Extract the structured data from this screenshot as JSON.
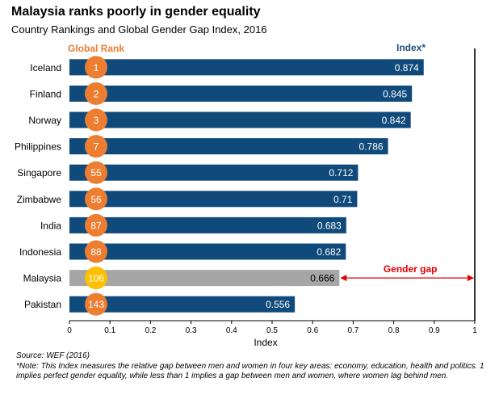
{
  "header": {
    "title": "Malaysia ranks poorly in gender equality",
    "subtitle": "Country Rankings and Global Gender Gap Index, 2016"
  },
  "chart_data": {
    "type": "bar",
    "orientation": "horizontal",
    "categories": [
      "Iceland",
      "Finland",
      "Norway",
      "Philippines",
      "Singapore",
      "Zimbabwe",
      "India",
      "Indonesia",
      "Malaysia",
      "Pakistan"
    ],
    "values": [
      0.874,
      0.845,
      0.842,
      0.786,
      0.712,
      0.71,
      0.683,
      0.682,
      0.666,
      0.556
    ],
    "value_labels": [
      "0.874",
      "0.845",
      "0.842",
      "0.786",
      "0.712",
      "0.71",
      "0.683",
      "0.682",
      "0.666",
      "0.556"
    ],
    "ranks": [
      "1",
      "2",
      "3",
      "7",
      "55",
      "56",
      "87",
      "88",
      "106",
      "143"
    ],
    "rank_header": "Global Rank",
    "index_header": "Index*",
    "xlabel": "Index",
    "xlim": [
      0,
      1
    ],
    "xticks": [
      "0",
      "0.1",
      "0.2",
      "0.3",
      "0.4",
      "0.5",
      "0.6",
      "0.7",
      "0.8",
      "0.9",
      "1"
    ],
    "highlight": "Malaysia",
    "annotation": {
      "label": "Gender gap",
      "from": 0.666,
      "to": 1
    },
    "colors": {
      "bar": "#0f4a7b",
      "highlight_bar": "#a6a6a6",
      "rank_circle": "#ed7d31",
      "highlight_circle": "#ffc000",
      "rank_header": "#ed7d31",
      "index_header": "#1f4e79",
      "annotation": "#e00000"
    }
  },
  "footnotes": {
    "source": "Source: WEF (2016)",
    "note": "*Note: This Index measures the relative gap between men and women in four key areas: economy, education, health and politics. 1 implies perfect gender equality, while less than 1 implies a gap between men and women, where women lag behind men."
  }
}
